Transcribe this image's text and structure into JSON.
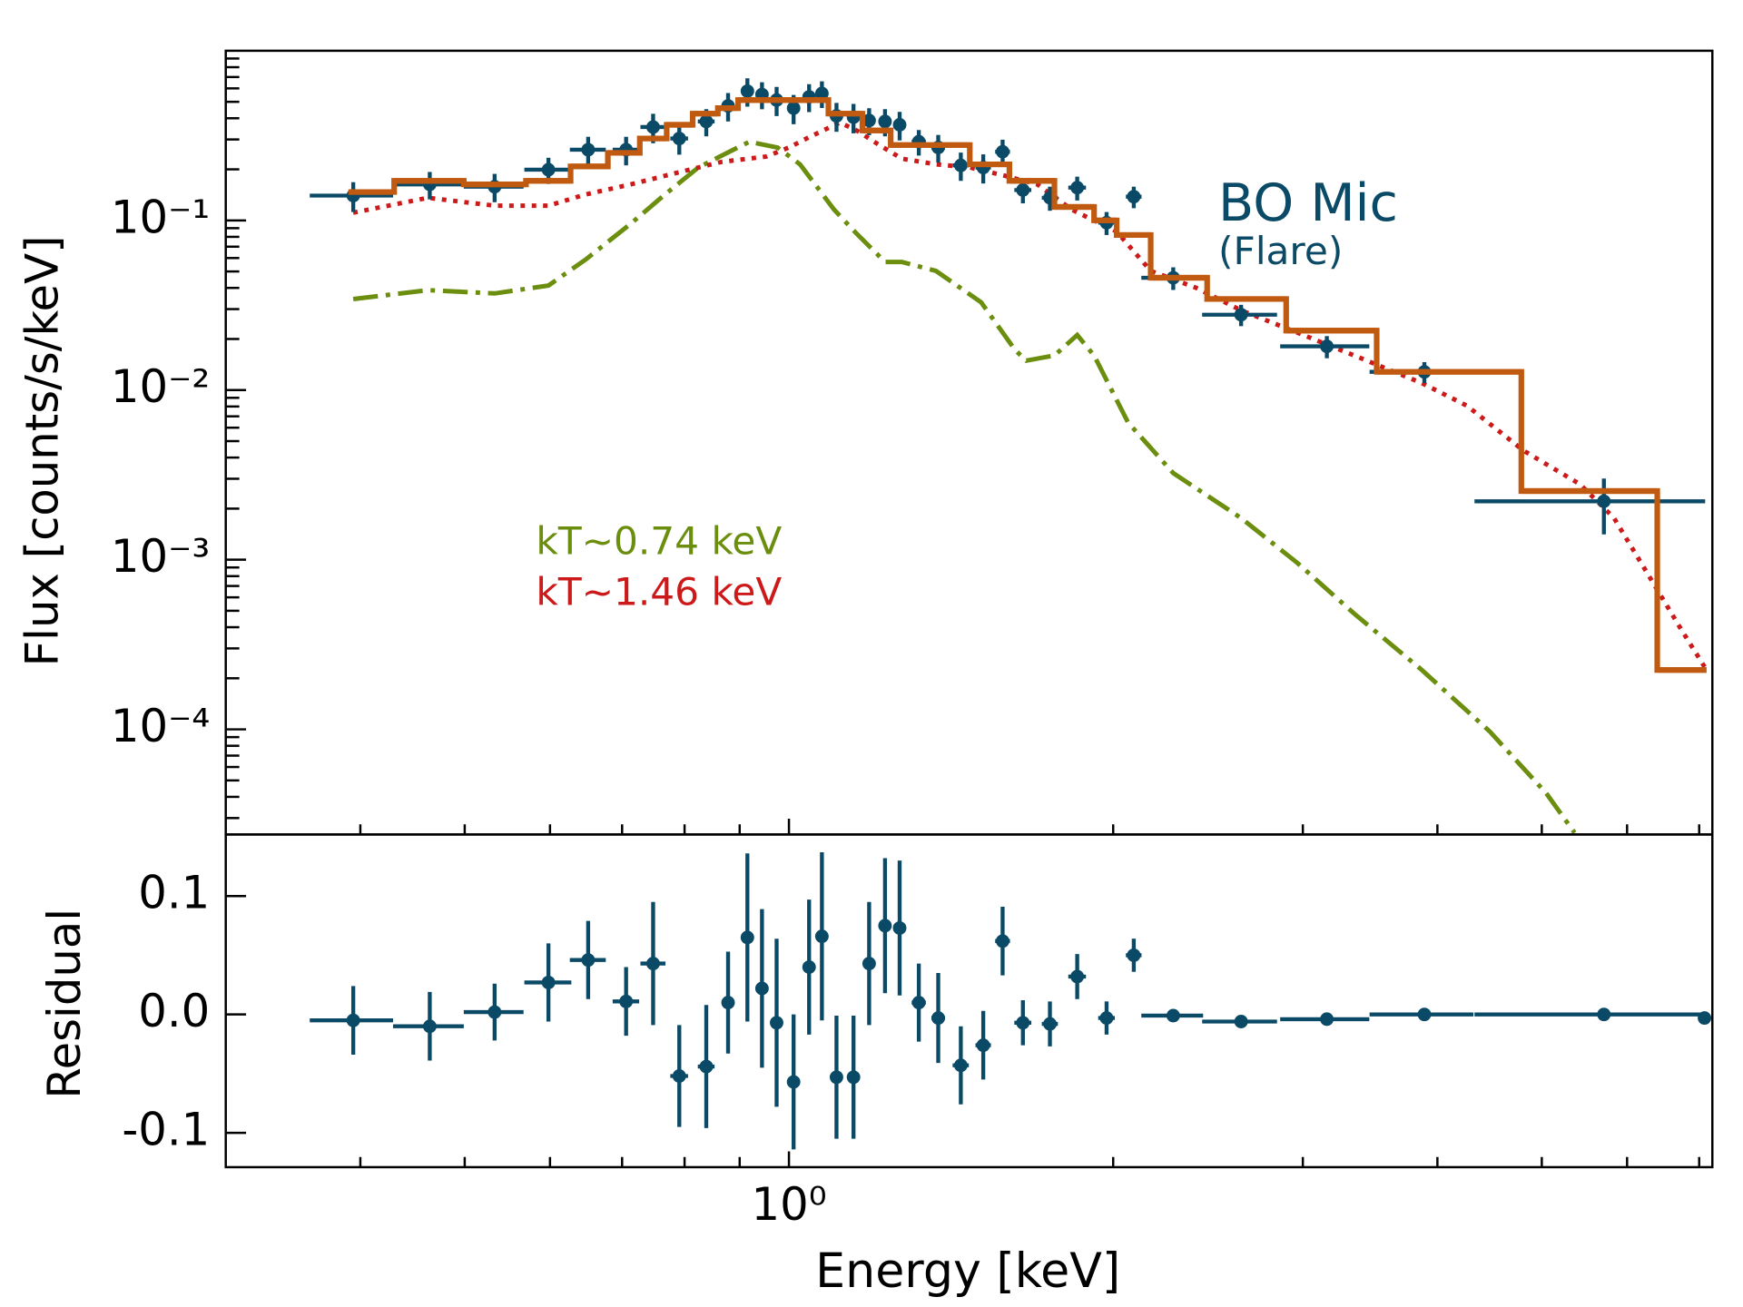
{
  "chart_data": [
    {
      "type": "scatter",
      "ylabel": "Flux [counts/s/keV]",
      "log_x": true,
      "log_y": true,
      "xlim": [
        0.3,
        7.2
      ],
      "ylim": [
        2.4e-05,
        1
      ],
      "xticks": [
        {
          "value": 1,
          "label": "10⁰"
        }
      ],
      "xminorticks": [
        0.4,
        0.5,
        0.6,
        0.7,
        0.8,
        0.9,
        2,
        3,
        4,
        5,
        6,
        7
      ],
      "yticks": [
        {
          "value": 0.0001,
          "label": "10⁻⁴"
        },
        {
          "value": 0.001,
          "label": "10⁻³"
        },
        {
          "value": 0.01,
          "label": "10⁻²"
        },
        {
          "value": 0.1,
          "label": "10⁻¹"
        }
      ],
      "yminorticks": [
        3e-05,
        4e-05,
        5e-05,
        6e-05,
        7e-05,
        8e-05,
        9e-05,
        0.0002,
        0.0003,
        0.0004,
        0.0005,
        0.0006,
        0.0007,
        0.0008,
        0.0009,
        0.002,
        0.003,
        0.004,
        0.005,
        0.006,
        0.007,
        0.008,
        0.009,
        0.02,
        0.03,
        0.04,
        0.05,
        0.06,
        0.07,
        0.08,
        0.09,
        0.2,
        0.3,
        0.4,
        0.5,
        0.6,
        0.7,
        0.8,
        0.9
      ],
      "annotations": [
        {
          "text": "BO Mic",
          "color": "#0b4a66"
        },
        {
          "text": "(Flare)",
          "color": "#0b4a66"
        },
        {
          "text": "kT~0.74 keV",
          "color": "#6b8e0e"
        },
        {
          "text": "kT~1.46 keV",
          "color": "#cc1a1a"
        }
      ],
      "data": {
        "color": "#0b4a66",
        "x": [
          0.394,
          0.464,
          0.533,
          0.598,
          0.651,
          0.706,
          0.748,
          0.791,
          0.838,
          0.878,
          0.915,
          0.944,
          0.974,
          1.01,
          1.044,
          1.073,
          1.107,
          1.148,
          1.187,
          1.228,
          1.267,
          1.32,
          1.376,
          1.444,
          1.515,
          1.579,
          1.649,
          1.747,
          1.852,
          1.972,
          2.09,
          2.274,
          2.629,
          3.158,
          3.89,
          5.71
        ],
        "xerr": [
          0.035,
          0.035,
          0.034,
          0.03,
          0.025,
          0.02,
          0.02,
          0.015,
          0.015,
          0.012,
          0.012,
          0.012,
          0.012,
          0.012,
          0.012,
          0.012,
          0.015,
          0.015,
          0.015,
          0.015,
          0.015,
          0.02,
          0.02,
          0.025,
          0.025,
          0.025,
          0.03,
          0.03,
          0.035,
          0.035,
          0.035,
          0.15,
          0.21,
          0.3,
          0.43,
          1.38
        ],
        "y": [
          0.14,
          0.163,
          0.158,
          0.199,
          0.261,
          0.261,
          0.355,
          0.304,
          0.383,
          0.473,
          0.578,
          0.552,
          0.512,
          0.459,
          0.535,
          0.56,
          0.413,
          0.406,
          0.388,
          0.383,
          0.366,
          0.291,
          0.269,
          0.211,
          0.205,
          0.254,
          0.151,
          0.136,
          0.156,
          0.097,
          0.138,
          0.0459,
          0.0278,
          0.0181,
          0.0128,
          0.00221
        ],
        "yerr": [
          0.028,
          0.03,
          0.03,
          0.035,
          0.05,
          0.05,
          0.07,
          0.06,
          0.07,
          0.09,
          0.11,
          0.1,
          0.1,
          0.09,
          0.1,
          0.1,
          0.08,
          0.08,
          0.07,
          0.07,
          0.07,
          0.05,
          0.05,
          0.04,
          0.04,
          0.045,
          0.025,
          0.022,
          0.025,
          0.015,
          0.02,
          0.007,
          0.004,
          0.0027,
          0.0018,
          0.0008
        ]
      },
      "model": {
        "color": "#c05a10",
        "bins": [
          0.39,
          0.43,
          0.499,
          0.57,
          0.627,
          0.679,
          0.727,
          0.77,
          0.814,
          0.859,
          0.897,
          0.976,
          1.088,
          1.17,
          1.243,
          1.472,
          1.602,
          1.764,
          1.92,
          2.015,
          2.167,
          2.445,
          2.895,
          3.513,
          4.786,
          6.4,
          7.11
        ],
        "values": [
          0.147,
          0.171,
          0.163,
          0.171,
          0.208,
          0.25,
          0.304,
          0.366,
          0.426,
          0.459,
          0.512,
          0.512,
          0.426,
          0.339,
          0.278,
          0.214,
          0.171,
          0.12,
          0.1,
          0.082,
          0.0459,
          0.0344,
          0.0224,
          0.0128,
          0.00254,
          0.000224
        ]
      },
      "components": [
        {
          "color": "#6b8e0e",
          "style": "dashdot",
          "x": [
            0.394,
            0.462,
            0.533,
            0.598,
            0.647,
            0.713,
            0.767,
            0.824,
            0.876,
            0.919,
            0.976,
            1.024,
            1.101,
            1.156,
            1.228,
            1.273,
            1.369,
            1.508,
            1.621,
            1.661,
            1.764,
            1.852,
            1.92,
            2.065,
            2.274,
            2.629,
            2.966,
            3.348,
            3.869,
            4.474,
            5.047,
            5.362
          ],
          "values": [
            0.0344,
            0.0388,
            0.0371,
            0.0413,
            0.0586,
            0.0955,
            0.142,
            0.205,
            0.25,
            0.291,
            0.269,
            0.214,
            0.116,
            0.0834,
            0.0569,
            0.0569,
            0.0504,
            0.0329,
            0.0173,
            0.0149,
            0.016,
            0.0211,
            0.016,
            0.00643,
            0.00324,
            0.00176,
            0.000955,
            0.000481,
            0.000224,
            9.7e-05,
            4.2e-05,
            2.46e-05
          ]
        },
        {
          "color": "#cc1a1a",
          "style": "dotted",
          "x": [
            0.394,
            0.462,
            0.533,
            0.598,
            0.647,
            0.713,
            0.785,
            0.865,
            0.953,
            1.0,
            1.049,
            1.115,
            1.156,
            1.213,
            1.273,
            1.369,
            1.472,
            1.583,
            1.701,
            1.829,
            2.015,
            2.167,
            2.386,
            2.629,
            2.966,
            3.348,
            3.869,
            4.263,
            4.81,
            5.427,
            5.834,
            6.274,
            6.745,
            7.11
          ],
          "values": [
            0.111,
            0.136,
            0.122,
            0.122,
            0.142,
            0.163,
            0.19,
            0.221,
            0.238,
            0.269,
            0.314,
            0.377,
            0.339,
            0.278,
            0.231,
            0.214,
            0.205,
            0.184,
            0.163,
            0.116,
            0.0859,
            0.0504,
            0.0401,
            0.0295,
            0.0218,
            0.016,
            0.011,
            0.00807,
            0.00439,
            0.00278,
            0.00176,
            0.00082,
            0.000383,
            0.000224
          ]
        }
      ]
    },
    {
      "type": "scatter",
      "xlabel": "Energy [keV]",
      "ylabel": "Residual",
      "log_x": true,
      "color": "#0b4a66",
      "xlim": [
        0.3,
        7.2
      ],
      "ylim": [
        -0.129,
        0.152
      ],
      "xticks": [
        {
          "value": 1,
          "label": "10⁰"
        }
      ],
      "xminorticks": [
        0.4,
        0.5,
        0.6,
        0.7,
        0.8,
        0.9,
        2,
        3,
        4,
        5,
        6,
        7
      ],
      "yticks": [
        -0.1,
        {
          "value": 0,
          "label": "0.0"
        },
        0.1
      ],
      "x": [
        0.394,
        0.464,
        0.533,
        0.598,
        0.651,
        0.706,
        0.748,
        0.791,
        0.838,
        0.878,
        0.915,
        0.944,
        0.974,
        1.01,
        1.044,
        1.073,
        1.107,
        1.148,
        1.187,
        1.228,
        1.267,
        1.32,
        1.376,
        1.444,
        1.515,
        1.579,
        1.649,
        1.747,
        1.852,
        1.972,
        2.09,
        2.274,
        2.629,
        3.158,
        3.89,
        5.71,
        7.08
      ],
      "xerr": [
        0.035,
        0.035,
        0.034,
        0.03,
        0.025,
        0.02,
        0.02,
        0.015,
        0.015,
        0.012,
        0.012,
        0.012,
        0.012,
        0.012,
        0.012,
        0.012,
        0.015,
        0.015,
        0.015,
        0.015,
        0.015,
        0.02,
        0.02,
        0.025,
        0.025,
        0.025,
        0.03,
        0.03,
        0.035,
        0.035,
        0.035,
        0.15,
        0.21,
        0.3,
        0.43,
        1.38,
        0.05
      ],
      "values": [
        -0.005,
        -0.01,
        0.002,
        0.027,
        0.046,
        0.011,
        0.043,
        -0.052,
        -0.044,
        0.01,
        0.065,
        0.022,
        -0.007,
        -0.057,
        0.04,
        0.066,
        -0.053,
        -0.053,
        0.043,
        0.075,
        0.073,
        0.01,
        -0.003,
        -0.043,
        -0.026,
        0.062,
        -0.007,
        -0.008,
        0.032,
        -0.003,
        0.05,
        -0.001,
        -0.006,
        -0.004,
        0.0,
        0.0,
        -0.003
      ],
      "yerr": [
        0.029,
        0.029,
        0.024,
        0.033,
        0.033,
        0.029,
        0.052,
        0.043,
        0.052,
        0.043,
        0.071,
        0.067,
        0.071,
        0.057,
        0.057,
        0.071,
        0.052,
        0.052,
        0.052,
        0.057,
        0.057,
        0.033,
        0.038,
        0.033,
        0.029,
        0.029,
        0.019,
        0.019,
        0.019,
        0.014,
        0.014,
        0.003,
        0.003,
        0.003,
        0.003,
        0.003,
        0.003
      ]
    }
  ]
}
